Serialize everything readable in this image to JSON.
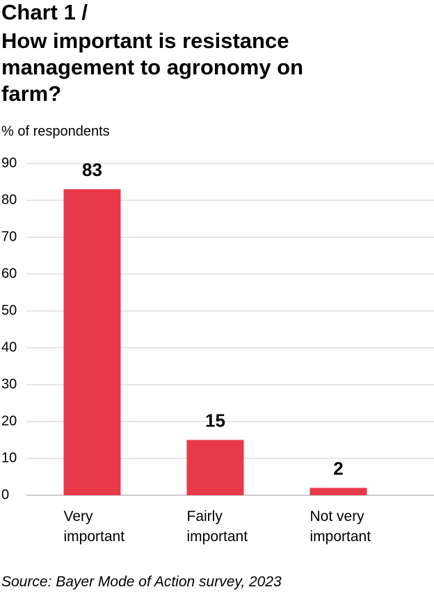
{
  "chart_data": {
    "type": "bar",
    "label": "Chart 1 /",
    "title": "How important is resistance management to agronomy on farm?",
    "y_label": "% of respondents",
    "categories": [
      "Very important",
      "Fairly important",
      "Not very important"
    ],
    "values": [
      83,
      15,
      2
    ],
    "color": "#e8394a",
    "ylim": [
      0,
      90
    ],
    "yticks": [
      0,
      10,
      20,
      30,
      40,
      50,
      60,
      70,
      80,
      90
    ],
    "grid": true,
    "source": "Source: Bayer Mode of Action survey, 2023"
  }
}
